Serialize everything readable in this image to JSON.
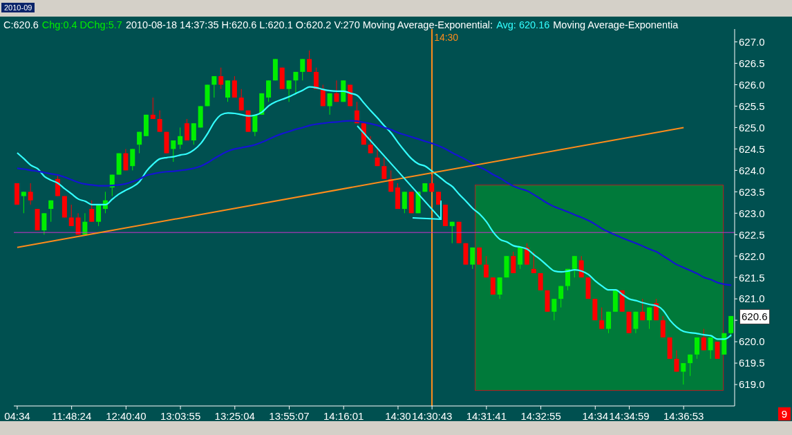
{
  "chart_data": {
    "type": "candlestick",
    "subtitle": "2010-09",
    "annotations": [
      "C:620.6",
      "Chg:0.4 DChg:5.7",
      "2010-08-18 14:37:35 H:620.6 L:620.1 O:620.2 V:270 Moving Average-Exponential:",
      "Avg: 620.16",
      "Moving Average-Exponentia",
      "9",
      "620.6"
    ],
    "categories": [
      "04:34",
      null,
      null,
      null,
      null,
      null,
      null,
      null,
      "11:48:24",
      null,
      null,
      null,
      null,
      null,
      null,
      null,
      "12:40:40",
      null,
      null,
      null,
      null,
      null,
      null,
      null,
      "13:03:55",
      null,
      null,
      null,
      null,
      null,
      null,
      null,
      "13:25:04",
      null,
      null,
      null,
      null,
      null,
      null,
      null,
      "13:55:07",
      null,
      null,
      null,
      null,
      null,
      null,
      null,
      "14:16:01",
      null,
      null,
      null,
      null,
      null,
      null,
      null,
      "14:30",
      null,
      null,
      null,
      null,
      "14:30:43",
      null,
      null,
      null,
      null,
      null,
      null,
      null,
      "14:31:41",
      null,
      null,
      null,
      null,
      null,
      null,
      null,
      "14:32:55",
      null,
      null,
      null,
      null,
      null,
      null,
      null,
      "14:34",
      null,
      null,
      null,
      null,
      "14:34:59",
      null,
      null,
      null,
      null,
      null,
      null,
      null,
      "14:36:53",
      null,
      null,
      null,
      null,
      null,
      null,
      null
    ],
    "ohlc": [
      [
        623.7,
        623.7,
        623.2,
        623.2
      ],
      [
        623.4,
        623.5,
        623.0,
        623.5
      ],
      [
        623.5,
        623.7,
        623.2,
        623.3
      ],
      [
        623.1,
        623.1,
        622.6,
        622.6
      ],
      [
        622.6,
        623.0,
        622.5,
        623.0
      ],
      [
        623.1,
        623.3,
        622.8,
        623.3
      ],
      [
        623.8,
        623.9,
        623.4,
        623.4
      ],
      [
        623.4,
        623.4,
        622.9,
        622.9
      ],
      [
        622.9,
        623.2,
        622.7,
        622.7
      ],
      [
        622.9,
        623.0,
        622.5,
        622.5
      ],
      [
        622.5,
        623.0,
        622.5,
        622.8
      ],
      [
        623.1,
        623.3,
        622.8,
        622.8
      ],
      [
        622.8,
        623.2,
        622.7,
        623.2
      ],
      [
        623.1,
        623.5,
        623.0,
        623.3
      ],
      [
        623.6,
        623.9,
        623.4,
        623.9
      ],
      [
        623.9,
        624.4,
        623.9,
        624.4
      ],
      [
        624.4,
        624.5,
        624.0,
        624.0
      ],
      [
        624.1,
        624.5,
        624.0,
        624.5
      ],
      [
        624.6,
        624.9,
        624.4,
        624.9
      ],
      [
        624.8,
        625.3,
        624.8,
        625.3
      ],
      [
        625.3,
        625.7,
        625.2,
        625.2
      ],
      [
        625.2,
        625.4,
        624.9,
        624.9
      ],
      [
        624.9,
        624.9,
        624.4,
        624.4
      ],
      [
        624.5,
        624.7,
        624.2,
        624.7
      ],
      [
        624.6,
        625.0,
        624.5,
        624.8
      ],
      [
        625.1,
        625.2,
        624.7,
        624.7
      ],
      [
        624.7,
        625.1,
        624.6,
        625.1
      ],
      [
        625.0,
        625.5,
        625.0,
        625.5
      ],
      [
        625.5,
        626.0,
        625.5,
        626.0
      ],
      [
        626.0,
        626.2,
        625.7,
        626.2
      ],
      [
        626.2,
        626.4,
        625.9,
        626.0
      ],
      [
        625.7,
        626.1,
        625.6,
        626.1
      ],
      [
        626.1,
        626.2,
        625.7,
        625.7
      ],
      [
        625.7,
        625.9,
        625.4,
        625.4
      ],
      [
        625.4,
        625.4,
        624.9,
        624.9
      ],
      [
        624.9,
        625.3,
        624.8,
        625.3
      ],
      [
        625.3,
        625.8,
        625.3,
        625.8
      ],
      [
        625.7,
        626.1,
        625.6,
        626.1
      ],
      [
        626.1,
        626.6,
        626.1,
        626.6
      ],
      [
        626.4,
        626.4,
        625.9,
        625.9
      ],
      [
        625.9,
        626.1,
        625.6,
        626.1
      ],
      [
        626.1,
        626.3,
        625.8,
        626.3
      ],
      [
        626.3,
        626.6,
        626.1,
        626.6
      ],
      [
        626.6,
        626.8,
        626.3,
        626.3
      ],
      [
        626.3,
        626.4,
        625.9,
        625.9
      ],
      [
        625.9,
        626.0,
        625.5,
        625.5
      ],
      [
        625.5,
        625.8,
        625.3,
        625.8
      ],
      [
        625.8,
        626.1,
        625.6,
        625.6
      ],
      [
        625.6,
        626.1,
        625.6,
        626.1
      ],
      [
        626.0,
        626.0,
        625.5,
        625.5
      ],
      [
        625.4,
        625.6,
        625.1,
        625.1
      ],
      [
        625.1,
        625.1,
        624.6,
        624.6
      ],
      [
        624.6,
        624.8,
        624.4,
        624.4
      ],
      [
        624.3,
        624.5,
        624.1,
        624.1
      ],
      [
        624.1,
        624.3,
        623.8,
        623.8
      ],
      [
        623.8,
        624.0,
        623.5,
        623.5
      ],
      [
        623.6,
        623.7,
        623.1,
        623.1
      ],
      [
        623.1,
        623.5,
        623.0,
        623.5
      ],
      [
        623.5,
        623.5,
        623.0,
        623.0
      ],
      [
        623.0,
        623.5,
        623.0,
        623.5
      ],
      [
        623.5,
        623.7,
        623.5,
        623.7
      ],
      [
        623.7,
        623.9,
        623.5,
        623.5
      ],
      [
        623.5,
        623.5,
        623.2,
        623.2
      ],
      [
        623.2,
        623.2,
        622.7,
        622.7
      ],
      [
        622.7,
        622.8,
        622.3,
        622.8
      ],
      [
        622.8,
        622.8,
        622.3,
        622.3
      ],
      [
        622.3,
        622.3,
        621.8,
        621.8
      ],
      [
        621.8,
        622.2,
        621.7,
        622.2
      ],
      [
        622.2,
        622.2,
        621.8,
        621.8
      ],
      [
        621.8,
        622.0,
        621.5,
        621.5
      ],
      [
        621.5,
        621.5,
        621.1,
        621.1
      ],
      [
        621.1,
        621.5,
        621.0,
        621.5
      ],
      [
        621.5,
        622.0,
        621.5,
        622.0
      ],
      [
        622.0,
        622.1,
        621.6,
        621.6
      ],
      [
        621.8,
        622.2,
        621.7,
        622.2
      ],
      [
        622.2,
        622.3,
        621.8,
        621.8
      ],
      [
        621.7,
        622.1,
        621.6,
        621.6
      ],
      [
        621.6,
        621.6,
        621.2,
        621.2
      ],
      [
        621.2,
        621.2,
        620.7,
        620.7
      ],
      [
        620.7,
        621.0,
        620.5,
        621.0
      ],
      [
        621.0,
        621.3,
        620.8,
        621.3
      ],
      [
        621.3,
        621.7,
        621.2,
        621.7
      ],
      [
        621.7,
        622.0,
        621.5,
        622.0
      ],
      [
        621.9,
        622.0,
        621.5,
        621.5
      ],
      [
        621.5,
        621.5,
        621.0,
        621.0
      ],
      [
        621.0,
        621.0,
        620.5,
        620.5
      ],
      [
        620.5,
        620.8,
        620.3,
        620.3
      ],
      [
        620.3,
        620.7,
        620.2,
        620.7
      ],
      [
        620.7,
        621.2,
        620.7,
        621.2
      ],
      [
        621.2,
        621.2,
        620.7,
        620.7
      ],
      [
        620.7,
        620.7,
        620.2,
        620.2
      ],
      [
        620.3,
        620.7,
        620.2,
        620.7
      ],
      [
        620.7,
        621.0,
        620.5,
        620.5
      ],
      [
        620.5,
        620.8,
        620.3,
        620.8
      ],
      [
        620.9,
        621.0,
        620.5,
        620.5
      ],
      [
        620.5,
        620.6,
        620.1,
        620.1
      ],
      [
        620.1,
        620.1,
        619.6,
        619.6
      ],
      [
        619.6,
        619.8,
        619.3,
        619.3
      ],
      [
        619.3,
        619.5,
        619.0,
        619.5
      ],
      [
        619.5,
        619.7,
        619.2,
        619.7
      ],
      [
        619.7,
        620.1,
        619.6,
        620.1
      ],
      [
        620.1,
        620.3,
        619.8,
        619.8
      ],
      [
        619.8,
        620.1,
        619.6,
        620.1
      ],
      [
        620.0,
        620.0,
        619.6,
        619.6
      ],
      [
        619.7,
        620.2,
        619.7,
        620.2
      ],
      [
        620.2,
        620.6,
        620.1,
        620.6
      ]
    ],
    "colors": [
      "#ff0000",
      "#00ee00",
      "#ff0000",
      "#ff0000",
      "#00ee00",
      "#00ee00",
      "#ff0000",
      "#ff0000",
      "#ff0000",
      "#ff0000",
      "#00ee00",
      "#ff0000",
      "#00ee00",
      "#00ee00",
      "#00ee00",
      "#00ee00",
      "#ff0000",
      "#00ee00",
      "#00ee00",
      "#00ee00",
      "#ff0000",
      "#ff0000",
      "#ff0000",
      "#00ee00",
      "#00ee00",
      "#ff0000",
      "#00ee00",
      "#00ee00",
      "#00ee00",
      "#00ee00",
      "#ff0000",
      "#00ee00",
      "#ff0000",
      "#ff0000",
      "#ff0000",
      "#00ee00",
      "#00ee00",
      "#00ee00",
      "#00ee00",
      "#ff0000",
      "#00ee00",
      "#00ee00",
      "#00ee00",
      "#ff0000",
      "#ff0000",
      "#ff0000",
      "#00ee00",
      "#ff0000",
      "#00ee00",
      "#ff0000",
      "#ff0000",
      "#ff0000",
      "#ff0000",
      "#ff0000",
      "#ff0000",
      "#ff0000",
      "#ff0000",
      "#00ee00",
      "#ff0000",
      "#00ee00",
      "#00ee00",
      "#ff0000",
      "#ff0000",
      "#ff0000",
      "#00ee00",
      "#ff0000",
      "#ff0000",
      "#00ee00",
      "#ff0000",
      "#ff0000",
      "#ff0000",
      "#00ee00",
      "#00ee00",
      "#ff0000",
      "#00ee00",
      "#ff0000",
      "#ff0000",
      "#ff0000",
      "#ff0000",
      "#00ee00",
      "#00ee00",
      "#00ee00",
      "#00ee00",
      "#ff0000",
      "#ff0000",
      "#ff0000",
      "#ff0000",
      "#00ee00",
      "#00ee00",
      "#ff0000",
      "#ff0000",
      "#00ee00",
      "#ff0000",
      "#00ee00",
      "#ff0000",
      "#ff0000",
      "#ff0000",
      "#ff0000",
      "#00ee00",
      "#00ee00",
      "#00ee00",
      "#ff0000",
      "#00ee00",
      "#ff0000",
      "#00ee00",
      "#00ee00"
    ],
    "series": [
      {
        "type": "line",
        "color": "#33ffff",
        "values": [
          624.41,
          624.27,
          624.12,
          624.04,
          623.86,
          623.77,
          623.7,
          623.57,
          623.45,
          623.33,
          623.28,
          623.2,
          623.2,
          623.2,
          623.33,
          623.45,
          623.54,
          623.62,
          623.74,
          623.98,
          624.15,
          624.27,
          624.3,
          624.32,
          624.36,
          624.39,
          624.48,
          624.63,
          624.86,
          625.13,
          625.3,
          625.34,
          625.33,
          625.3,
          625.27,
          625.29,
          625.36,
          625.51,
          625.6,
          625.66,
          625.72,
          625.8,
          625.87,
          625.95,
          625.93,
          625.89,
          625.86,
          625.85,
          625.85,
          625.8,
          625.75,
          625.57,
          625.39,
          625.22,
          625.04,
          624.87,
          624.65,
          624.45,
          624.27,
          624.15,
          624.1,
          623.98,
          623.86,
          623.73,
          623.62,
          623.44,
          623.28,
          623.11,
          622.98,
          622.8,
          622.56,
          622.39,
          622.33,
          622.24,
          622.21,
          622.16,
          622.03,
          621.91,
          621.77,
          621.65,
          621.63,
          621.65,
          621.68,
          621.65,
          621.57,
          621.42,
          621.3,
          621.21,
          621.21,
          621.1,
          621.0,
          620.96,
          620.91,
          620.87,
          620.84,
          620.73,
          620.5,
          620.34,
          620.24,
          620.21,
          620.19,
          620.16,
          620.14,
          620.06,
          620.06,
          620.16
        ]
      },
      {
        "type": "line",
        "color": "#1414d2",
        "values": [
          624.05,
          624.03,
          624.0,
          623.98,
          623.95,
          623.92,
          623.89,
          623.84,
          623.78,
          623.72,
          623.68,
          623.66,
          623.64,
          623.64,
          623.65,
          623.66,
          623.69,
          623.74,
          623.8,
          623.88,
          623.92,
          623.95,
          623.97,
          623.98,
          624.0,
          624.02,
          624.05,
          624.1,
          624.18,
          624.28,
          624.37,
          624.45,
          624.5,
          624.53,
          624.56,
          624.6,
          624.66,
          624.73,
          624.8,
          624.86,
          624.91,
          624.96,
          625.0,
          625.05,
          625.08,
          625.1,
          625.12,
          625.13,
          625.15,
          625.16,
          625.15,
          625.12,
          625.09,
          625.05,
          625.0,
          624.95,
          624.88,
          624.83,
          624.78,
          624.73,
          624.68,
          624.63,
          624.57,
          624.5,
          624.41,
          624.33,
          624.25,
          624.16,
          624.08,
          624.0,
          623.9,
          623.82,
          623.72,
          623.63,
          623.57,
          623.52,
          623.43,
          623.33,
          623.23,
          623.15,
          623.09,
          623.03,
          622.96,
          622.9,
          622.83,
          622.74,
          622.64,
          622.56,
          622.49,
          622.42,
          622.36,
          622.3,
          622.23,
          622.16,
          622.1,
          622.0,
          621.9,
          621.8,
          621.73,
          621.66,
          621.59,
          621.5,
          621.45,
          621.38,
          621.34,
          621.32
        ]
      },
      {
        "type": "line",
        "color": "#ff8c1a",
        "x": [
          "04:34",
          "14:36:53"
        ],
        "values": [
          622.2,
          625.0
        ]
      }
    ],
    "ref_lines": [
      {
        "axis": "y",
        "value": 622.55,
        "color": "#cc33cc"
      },
      {
        "axis": "x",
        "value": "14:30:43",
        "label": "14:30",
        "color": "#ff8c1a"
      }
    ],
    "ylim": [
      618.5,
      627.3
    ],
    "yticks": [
      {
        "value": 619,
        "label": "619.0"
      },
      619.5,
      {
        "value": 620,
        "label": "620.0"
      },
      {
        "value": 620.5,
        "label": null
      },
      {
        "value": 621,
        "label": "621.0"
      },
      621.5,
      {
        "value": 622,
        "label": "622.0"
      },
      622.5,
      {
        "value": 623,
        "label": "623.0"
      },
      623.5,
      {
        "value": 624,
        "label": "624.0"
      },
      624.5,
      {
        "value": 625,
        "label": "625.0"
      },
      625.5,
      {
        "value": 626,
        "label": "626.0"
      },
      626.5,
      {
        "value": 627,
        "label": "627.0"
      }
    ]
  }
}
